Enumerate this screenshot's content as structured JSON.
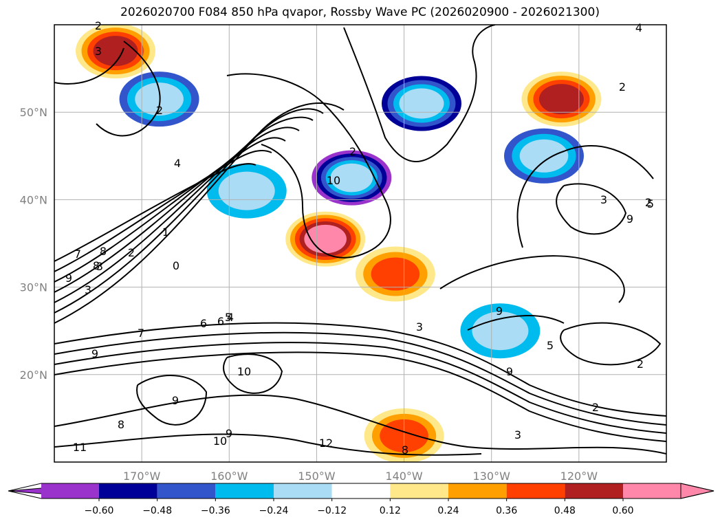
{
  "title": "2026020700 F084 850 hPa qvapor, Rossby Wave PC (2026020900 - 2026021300)",
  "chart_data": {
    "type": "heatmap",
    "title": "2026020700 F084 850 hPa qvapor, Rossby Wave PC (2026020900 - 2026021300)",
    "xlabel": "",
    "ylabel": "",
    "lon_range": [
      -180,
      -110
    ],
    "lat_range": [
      10,
      60
    ],
    "x_ticks": [
      {
        "value": -170,
        "label": "170°W"
      },
      {
        "value": -160,
        "label": "160°W"
      },
      {
        "value": -150,
        "label": "150°W"
      },
      {
        "value": -140,
        "label": "140°W"
      },
      {
        "value": -130,
        "label": "130°W"
      },
      {
        "value": -120,
        "label": "120°W"
      }
    ],
    "y_ticks": [
      {
        "value": 20,
        "label": "20°N"
      },
      {
        "value": 30,
        "label": "30°N"
      },
      {
        "value": 40,
        "label": "40°N"
      },
      {
        "value": 50,
        "label": "50°N"
      }
    ],
    "colorbar": {
      "levels": [
        -0.6,
        -0.48,
        -0.36,
        -0.24,
        -0.12,
        0.12,
        0.24,
        0.36,
        0.48,
        0.6
      ],
      "tick_labels": [
        "−0.60",
        "−0.48",
        "−0.36",
        "−0.24",
        "−0.12",
        "0.12",
        "0.24",
        "0.36",
        "0.48",
        "0.60"
      ],
      "colors": [
        "#9933cc",
        "#000099",
        "#3355cc",
        "#00bbee",
        "#aaddf5",
        "#ffffff",
        "#ffe88a",
        "#ffa000",
        "#ff4000",
        "#b02020",
        "#ff88aa"
      ],
      "extend": "both"
    },
    "shaded_anomalies": [
      {
        "lon": -146,
        "lat": 42.5,
        "value": -0.6
      },
      {
        "lon": -138,
        "lat": 51,
        "value": -0.48
      },
      {
        "lon": -168,
        "lat": 51.5,
        "value": -0.4
      },
      {
        "lon": -158,
        "lat": 41,
        "value": -0.3
      },
      {
        "lon": -124,
        "lat": 45,
        "value": -0.36
      },
      {
        "lon": -129,
        "lat": 25,
        "value": -0.3
      },
      {
        "lon": -149,
        "lat": 35.5,
        "value": 0.6
      },
      {
        "lon": -141,
        "lat": 31.5,
        "value": 0.45
      },
      {
        "lon": -122,
        "lat": 51.5,
        "value": 0.5
      },
      {
        "lon": -173,
        "lat": 57,
        "value": 0.5
      },
      {
        "lon": -140,
        "lat": 13,
        "value": 0.4
      }
    ],
    "contour_labels": [
      "2",
      "3",
      "2",
      "4",
      "1",
      "2",
      "8",
      "7",
      "9",
      "3",
      "0",
      "8",
      "3",
      "6",
      "5",
      "4",
      "6",
      "7",
      "9",
      "10",
      "9",
      "8",
      "9",
      "10",
      "11",
      "12",
      "9",
      "9",
      "5",
      "3",
      "2",
      "3",
      "8",
      "10",
      "9",
      "2",
      "5",
      "3",
      "4",
      "2",
      "2",
      "2"
    ]
  }
}
